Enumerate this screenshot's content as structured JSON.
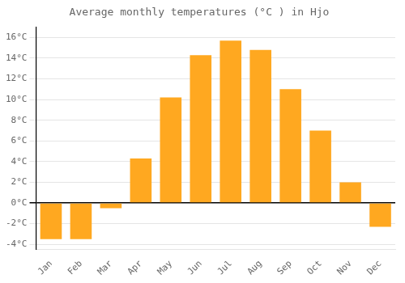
{
  "chart_data": {
    "type": "bar",
    "title": "Average monthly temperatures (°C ) in Hjo",
    "categories": [
      "Jan",
      "Feb",
      "Mar",
      "Apr",
      "May",
      "Jun",
      "Jul",
      "Aug",
      "Sep",
      "Oct",
      "Nov",
      "Dec"
    ],
    "values": [
      -3.5,
      -3.5,
      -0.5,
      4.3,
      10.2,
      14.3,
      15.7,
      14.8,
      11.0,
      7.0,
      2.0,
      -2.3
    ],
    "color": "#FFA820",
    "ylim": [
      -4.5,
      17
    ],
    "yticks": [
      {
        "value": -4,
        "label": "-4°C"
      },
      {
        "value": -2,
        "label": "-2°C"
      },
      {
        "value": 0,
        "label": "0°C"
      },
      {
        "value": 2,
        "label": "2°C"
      },
      {
        "value": 4,
        "label": "4°C"
      },
      {
        "value": 6,
        "label": "6°C"
      },
      {
        "value": 8,
        "label": "8°C"
      },
      {
        "value": 10,
        "label": "10°C"
      },
      {
        "value": 12,
        "label": "12°C"
      },
      {
        "value": 14,
        "label": "14°C"
      },
      {
        "value": 16,
        "label": "16°C"
      }
    ],
    "grid": true
  }
}
